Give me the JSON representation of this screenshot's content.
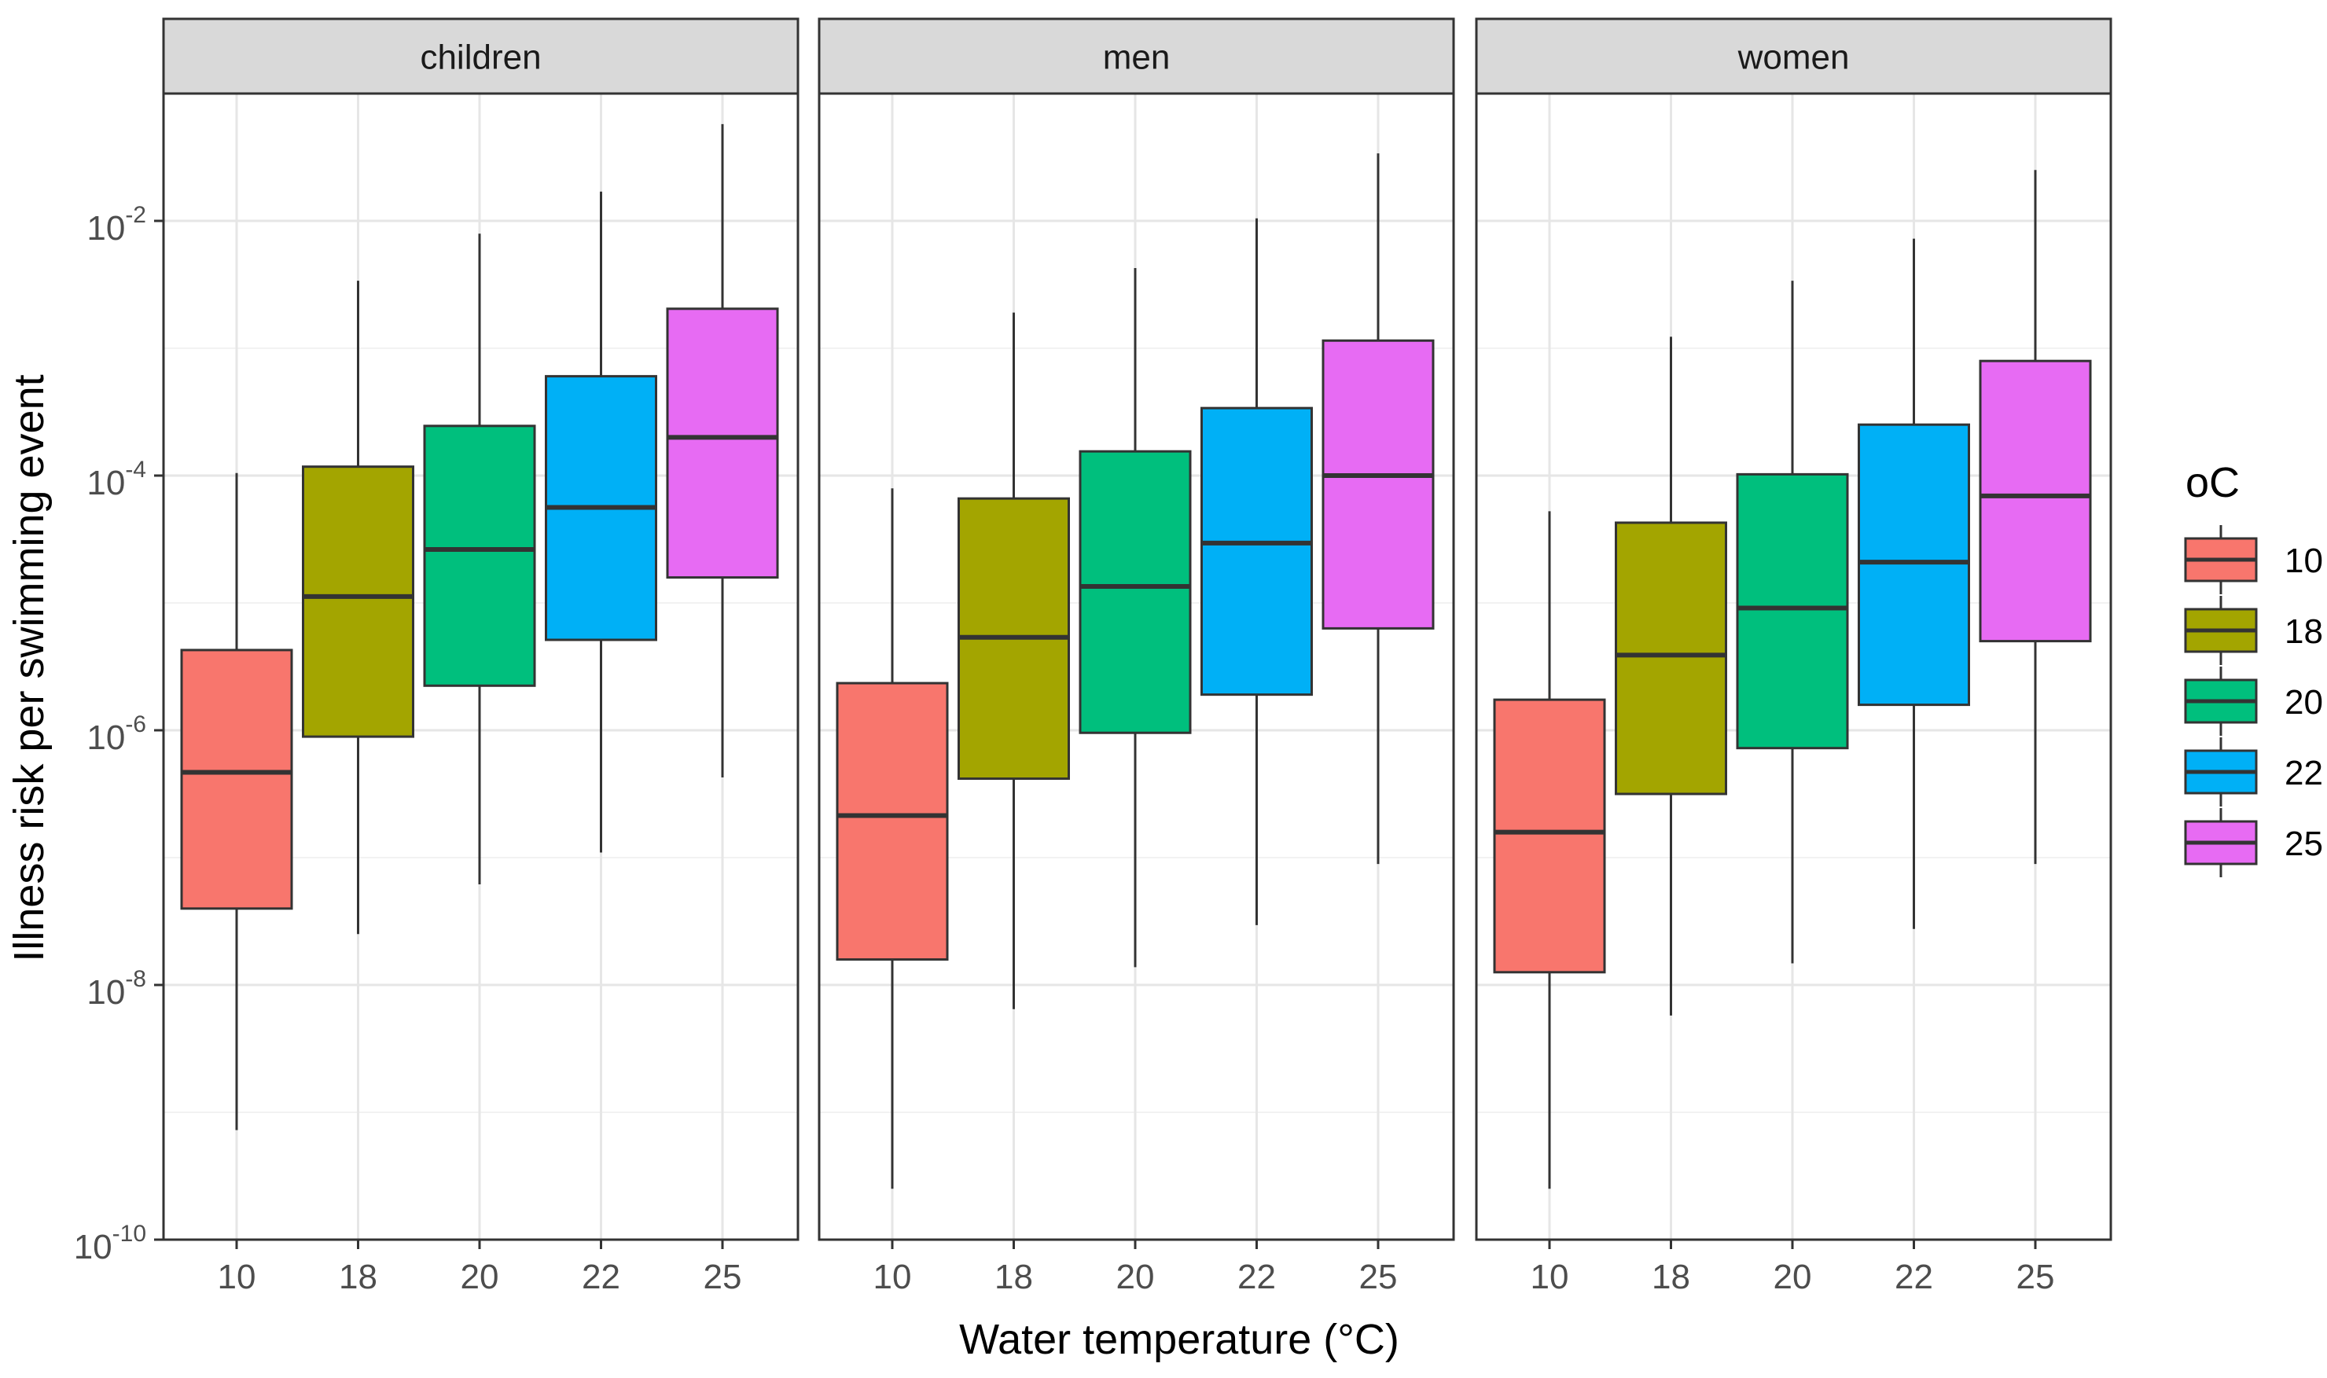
{
  "chart_data": {
    "type": "boxplot",
    "facet_labels": [
      "children",
      "men",
      "women"
    ],
    "categories": [
      "10",
      "18",
      "20",
      "22",
      "25"
    ],
    "xlabel": "Water temperature (°C)",
    "ylabel": "Illness risk per swimming event",
    "y_scale": "log10",
    "ylim": [
      1e-10,
      0.1
    ],
    "y_ticks": [
      {
        "base": "10",
        "exp": "-10",
        "value": -10
      },
      {
        "base": "10",
        "exp": "-8",
        "value": -8
      },
      {
        "base": "10",
        "exp": "-6",
        "value": -6
      },
      {
        "base": "10",
        "exp": "-4",
        "value": -4
      },
      {
        "base": "10",
        "exp": "-2",
        "value": -2
      }
    ],
    "grid": true,
    "legend": {
      "title": "oC",
      "position": "right",
      "entries": [
        {
          "label": "10",
          "color": "#F8766D"
        },
        {
          "label": "18",
          "color": "#A3A500"
        },
        {
          "label": "20",
          "color": "#00BF7D"
        },
        {
          "label": "22",
          "color": "#00B0F6"
        },
        {
          "label": "25",
          "color": "#E76BF3"
        }
      ]
    },
    "series_log10": [
      {
        "facet": "children",
        "boxes": [
          {
            "category": "10",
            "whisker_low": -9.14,
            "q1": -7.4,
            "median": -6.33,
            "q3": -5.37,
            "whisker_high": -3.98
          },
          {
            "category": "18",
            "whisker_low": -7.6,
            "q1": -6.05,
            "median": -4.95,
            "q3": -3.93,
            "whisker_high": -2.47
          },
          {
            "category": "20",
            "whisker_low": -7.21,
            "q1": -5.65,
            "median": -4.58,
            "q3": -3.61,
            "whisker_high": -2.1
          },
          {
            "category": "22",
            "whisker_low": -6.96,
            "q1": -5.29,
            "median": -4.25,
            "q3": -3.22,
            "whisker_high": -1.77
          },
          {
            "category": "25",
            "whisker_low": -6.37,
            "q1": -4.8,
            "median": -3.7,
            "q3": -2.69,
            "whisker_high": -1.24
          }
        ]
      },
      {
        "facet": "men",
        "boxes": [
          {
            "category": "10",
            "whisker_low": -9.6,
            "q1": -7.8,
            "median": -6.67,
            "q3": -5.63,
            "whisker_high": -4.1
          },
          {
            "category": "18",
            "whisker_low": -8.19,
            "q1": -6.38,
            "median": -5.27,
            "q3": -4.18,
            "whisker_high": -2.72
          },
          {
            "category": "20",
            "whisker_low": -7.86,
            "q1": -6.02,
            "median": -4.87,
            "q3": -3.81,
            "whisker_high": -2.37
          },
          {
            "category": "22",
            "whisker_low": -7.53,
            "q1": -5.72,
            "median": -4.53,
            "q3": -3.47,
            "whisker_high": -1.98
          },
          {
            "category": "25",
            "whisker_low": -7.05,
            "q1": -5.2,
            "median": -4.0,
            "q3": -2.94,
            "whisker_high": -1.47
          }
        ]
      },
      {
        "facet": "women",
        "boxes": [
          {
            "category": "10",
            "whisker_low": -9.6,
            "q1": -7.9,
            "median": -6.8,
            "q3": -5.76,
            "whisker_high": -4.28
          },
          {
            "category": "18",
            "whisker_low": -8.24,
            "q1": -6.5,
            "median": -5.41,
            "q3": -4.37,
            "whisker_high": -2.91
          },
          {
            "category": "20",
            "whisker_low": -7.83,
            "q1": -6.14,
            "median": -5.04,
            "q3": -3.99,
            "whisker_high": -2.47
          },
          {
            "category": "22",
            "whisker_low": -7.56,
            "q1": -5.8,
            "median": -4.68,
            "q3": -3.6,
            "whisker_high": -2.14
          },
          {
            "category": "25",
            "whisker_low": -7.05,
            "q1": -5.3,
            "median": -4.16,
            "q3": -3.1,
            "whisker_high": -1.6
          }
        ]
      }
    ]
  }
}
